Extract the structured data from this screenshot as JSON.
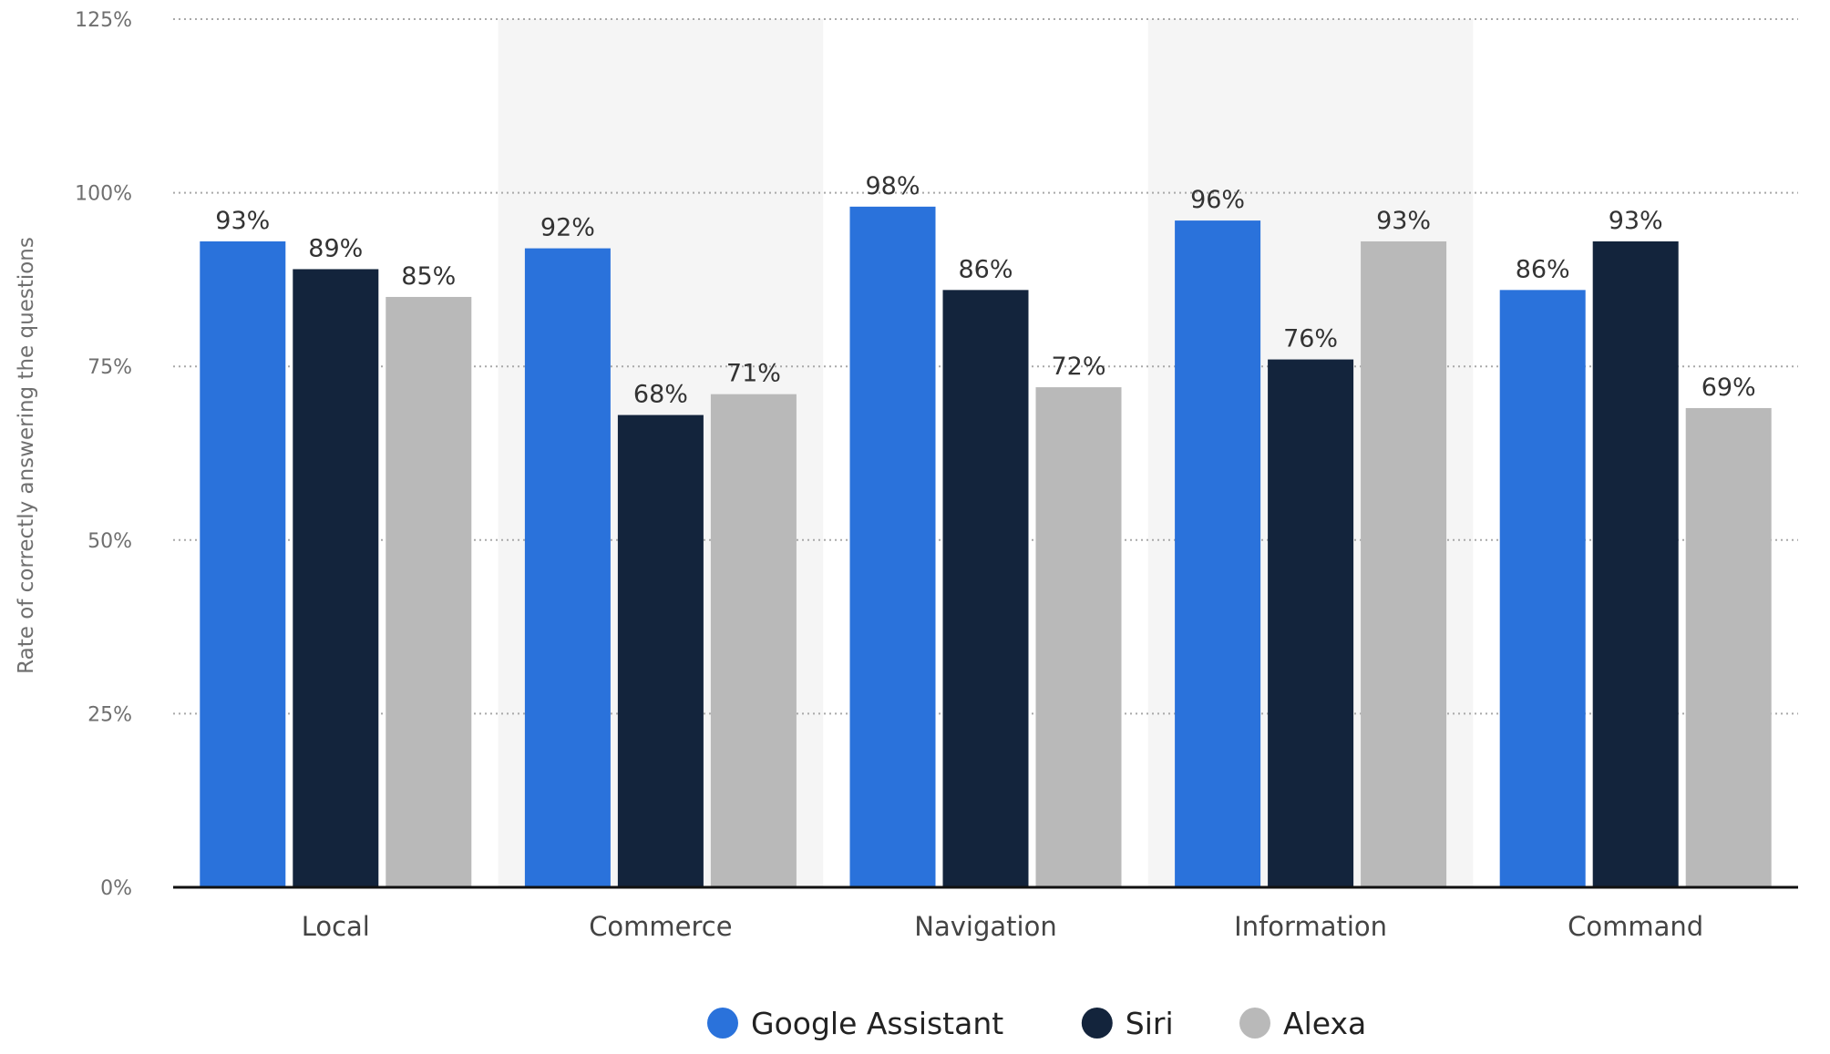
{
  "chart_data": {
    "type": "bar",
    "title": "",
    "xlabel": "",
    "ylabel": "Rate of correctly answering the questions",
    "ylim": [
      0,
      125
    ],
    "yticks": [
      0,
      25,
      50,
      75,
      100,
      125
    ],
    "ytick_labels": [
      "0%",
      "25%",
      "50%",
      "75%",
      "100%",
      "125%"
    ],
    "grid": true,
    "legend_position": "bottom-center",
    "categories": [
      "Local",
      "Commerce",
      "Navigation",
      "Information",
      "Command"
    ],
    "series": [
      {
        "name": "Google Assistant",
        "color": "#2a72db",
        "values": [
          93,
          92,
          98,
          96,
          86
        ]
      },
      {
        "name": "Siri",
        "color": "#13243c",
        "values": [
          89,
          68,
          86,
          76,
          93
        ]
      },
      {
        "name": "Alexa",
        "color": "#b9b9b9",
        "values": [
          85,
          71,
          72,
          93,
          69
        ]
      }
    ],
    "value_suffix": "%"
  }
}
